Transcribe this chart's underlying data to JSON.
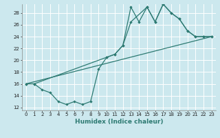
{
  "xlabel": "Humidex (Indice chaleur)",
  "xlim": [
    -0.5,
    23.5
  ],
  "ylim": [
    11.5,
    29.5
  ],
  "xticks": [
    0,
    1,
    2,
    3,
    4,
    5,
    6,
    7,
    8,
    9,
    10,
    11,
    12,
    13,
    14,
    15,
    16,
    17,
    18,
    19,
    20,
    21,
    22,
    23
  ],
  "yticks": [
    12,
    14,
    16,
    18,
    20,
    22,
    24,
    26,
    28
  ],
  "bg_color": "#cce8ee",
  "line_color": "#2d7a72",
  "grid_color": "#ffffff",
  "series1_x": [
    0,
    1,
    2,
    3,
    4,
    5,
    6,
    7,
    8,
    9,
    10,
    11,
    12,
    13,
    14,
    15,
    16,
    17,
    18,
    19,
    20,
    21,
    22,
    23
  ],
  "series1_y": [
    16.0,
    16.0,
    15.0,
    14.5,
    13.0,
    12.5,
    13.0,
    12.5,
    13.0,
    18.5,
    20.5,
    21.0,
    22.5,
    29.0,
    26.5,
    29.0,
    26.5,
    29.5,
    28.0,
    27.0,
    25.0,
    24.0,
    24.0,
    24.0
  ],
  "series2_x": [
    0,
    1,
    10,
    11,
    12,
    13,
    15,
    16,
    17,
    18,
    19,
    20,
    21,
    22,
    23
  ],
  "series2_y": [
    16.0,
    16.0,
    20.5,
    21.0,
    22.5,
    26.5,
    29.0,
    26.5,
    29.5,
    28.0,
    27.0,
    25.0,
    24.0,
    24.0,
    24.0
  ],
  "series3_x": [
    0,
    23
  ],
  "series3_y": [
    16.0,
    24.0
  ],
  "xlabel_fontsize": 6.5,
  "xlabel_fontweight": "bold",
  "xlabel_color": "#2d7a72",
  "tick_fontsize": 5.0,
  "linewidth": 0.9,
  "markersize": 2.2
}
